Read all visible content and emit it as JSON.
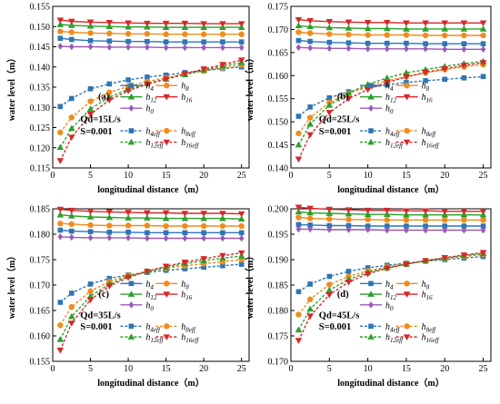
{
  "chart_data": [
    {
      "type": "line",
      "panel_label": "(a)",
      "annotation_lines": [
        "Qd=15L/s",
        "S=0.001"
      ],
      "xlabel": "longitudinal distance（m）",
      "ylabel": "water level（m）",
      "xlim": [
        0,
        26
      ],
      "ylim": [
        0.115,
        0.155
      ],
      "xticks": [
        "0",
        "5",
        "10",
        "15",
        "20",
        "25"
      ],
      "yticks": [
        "0.115",
        "0.120",
        "0.125",
        "0.130",
        "0.135",
        "0.140",
        "0.145",
        "0.150",
        "0.155"
      ],
      "x": [
        1,
        2.5,
        5,
        7.5,
        10,
        12.5,
        15,
        17.5,
        20,
        22.5,
        25
      ],
      "series": [
        {
          "name": "h4",
          "values": [
            0.1471,
            0.1468,
            0.1465,
            0.1464,
            0.1463,
            0.1463,
            0.1462,
            0.1462,
            0.1462,
            0.1462,
            0.1462
          ],
          "color": "#2E75B6",
          "marker": "square",
          "dash": false
        },
        {
          "name": "h8",
          "values": [
            0.1488,
            0.1486,
            0.1484,
            0.1483,
            0.1482,
            0.1482,
            0.1481,
            0.1481,
            0.1481,
            0.1481,
            0.1481
          ],
          "color": "#F08C1F",
          "marker": "circle",
          "dash": false
        },
        {
          "name": "h12",
          "values": [
            0.1505,
            0.1503,
            0.1501,
            0.15,
            0.1499,
            0.1499,
            0.1498,
            0.1498,
            0.1498,
            0.1498,
            0.1498
          ],
          "color": "#2CA02C",
          "marker": "triangle",
          "dash": false
        },
        {
          "name": "h16",
          "values": [
            0.1516,
            0.1513,
            0.1511,
            0.151,
            0.1509,
            0.1508,
            0.1508,
            0.1508,
            0.1507,
            0.1507,
            0.1507
          ],
          "color": "#D62728",
          "marker": "triangle-down",
          "dash": false
        },
        {
          "name": "h0",
          "values": [
            0.1451,
            0.145,
            0.145,
            0.1449,
            0.1449,
            0.1449,
            0.1448,
            0.1448,
            0.1448,
            0.1448,
            0.1448
          ],
          "color": "#9B59B6",
          "marker": "diamond",
          "dash": false
        },
        {
          "name": "h4eff",
          "values": [
            0.1302,
            0.1322,
            0.1346,
            0.1358,
            0.1368,
            0.1375,
            0.138,
            0.1386,
            0.1391,
            0.1396,
            0.14
          ],
          "color": "#2E75B6",
          "marker": "square",
          "dash": true
        },
        {
          "name": "h8eff",
          "values": [
            0.1238,
            0.1275,
            0.1315,
            0.1337,
            0.1352,
            0.1364,
            0.1373,
            0.1382,
            0.139,
            0.1398,
            0.1405
          ],
          "color": "#F08C1F",
          "marker": "circle",
          "dash": true
        },
        {
          "name": "h12eff",
          "values": [
            0.1201,
            0.1248,
            0.1296,
            0.1325,
            0.1345,
            0.1359,
            0.137,
            0.1381,
            0.1392,
            0.1402,
            0.1411
          ],
          "color": "#2CA02C",
          "marker": "triangle",
          "dash": true
        },
        {
          "name": "h16eff",
          "values": [
            0.1168,
            0.1226,
            0.1283,
            0.1318,
            0.1341,
            0.1357,
            0.137,
            0.1383,
            0.1395,
            0.1406,
            0.1417
          ],
          "color": "#D62728",
          "marker": "triangle-down",
          "dash": true
        }
      ]
    },
    {
      "type": "line",
      "panel_label": "(b)",
      "annotation_lines": [
        "Qd=25L/s",
        "S=0.001"
      ],
      "xlabel": "longitudinal distance（m）",
      "ylabel": "water level（m）",
      "xlim": [
        0,
        26
      ],
      "ylim": [
        0.14,
        0.175
      ],
      "xticks": [
        "0",
        "5",
        "10",
        "15",
        "20",
        "25"
      ],
      "yticks": [
        "0.140",
        "0.145",
        "0.150",
        "0.155",
        "0.160",
        "0.165",
        "0.170",
        "0.175"
      ],
      "x": [
        1,
        2.5,
        5,
        7.5,
        10,
        12.5,
        15,
        17.5,
        20,
        22.5,
        25
      ],
      "series": [
        {
          "name": "h4",
          "values": [
            0.1676,
            0.1674,
            0.1672,
            0.1671,
            0.167,
            0.167,
            0.167,
            0.1669,
            0.1669,
            0.1669,
            0.1669
          ],
          "color": "#2E75B6",
          "marker": "square",
          "dash": false
        },
        {
          "name": "h8",
          "values": [
            0.1694,
            0.1692,
            0.169,
            0.1689,
            0.1688,
            0.1688,
            0.1688,
            0.1687,
            0.1687,
            0.1687,
            0.1687
          ],
          "color": "#F08C1F",
          "marker": "circle",
          "dash": false
        },
        {
          "name": "h12",
          "values": [
            0.1708,
            0.1706,
            0.1704,
            0.1703,
            0.1702,
            0.1702,
            0.1701,
            0.1701,
            0.1701,
            0.1701,
            0.1701
          ],
          "color": "#2CA02C",
          "marker": "triangle",
          "dash": false
        },
        {
          "name": "h16",
          "values": [
            0.1721,
            0.1719,
            0.1717,
            0.1716,
            0.1715,
            0.1715,
            0.1714,
            0.1714,
            0.1714,
            0.1714,
            0.1714
          ],
          "color": "#D62728",
          "marker": "triangle-down",
          "dash": false
        },
        {
          "name": "h0",
          "values": [
            0.1661,
            0.166,
            0.1659,
            0.1659,
            0.1658,
            0.1658,
            0.1658,
            0.1658,
            0.1657,
            0.1657,
            0.1657
          ],
          "color": "#9B59B6",
          "marker": "diamond",
          "dash": false
        },
        {
          "name": "h4eff",
          "values": [
            0.1512,
            0.1532,
            0.1552,
            0.1565,
            0.1574,
            0.158,
            0.1585,
            0.1589,
            0.1592,
            0.1595,
            0.1598
          ],
          "color": "#2E75B6",
          "marker": "square",
          "dash": true
        },
        {
          "name": "h8eff",
          "values": [
            0.1475,
            0.1509,
            0.1542,
            0.1562,
            0.1577,
            0.1589,
            0.1598,
            0.1606,
            0.1613,
            0.1619,
            0.1624
          ],
          "color": "#F08C1F",
          "marker": "circle",
          "dash": true
        },
        {
          "name": "h12eff",
          "values": [
            0.145,
            0.1495,
            0.1536,
            0.1562,
            0.1581,
            0.1595,
            0.1606,
            0.1613,
            0.162,
            0.1626,
            0.1631
          ],
          "color": "#2CA02C",
          "marker": "triangle",
          "dash": true
        },
        {
          "name": "h16eff",
          "values": [
            0.1419,
            0.1472,
            0.152,
            0.155,
            0.157,
            0.1585,
            0.1597,
            0.1607,
            0.1615,
            0.1622,
            0.1628
          ],
          "color": "#D62728",
          "marker": "triangle-down",
          "dash": true
        }
      ]
    },
    {
      "type": "line",
      "panel_label": "(c)",
      "annotation_lines": [
        "Qd=35L/s",
        "S=0.001"
      ],
      "xlabel": "longitudinal distance（m）",
      "ylabel": "water level（m）",
      "xlim": [
        0,
        26
      ],
      "ylim": [
        0.155,
        0.185
      ],
      "xticks": [
        "0",
        "5",
        "10",
        "15",
        "20",
        "25"
      ],
      "yticks": [
        "0.155",
        "0.160",
        "0.165",
        "0.170",
        "0.175",
        "0.180",
        "0.185"
      ],
      "x": [
        1,
        2.5,
        5,
        7.5,
        10,
        12.5,
        15,
        17.5,
        20,
        22.5,
        25
      ],
      "series": [
        {
          "name": "h4",
          "values": [
            0.1808,
            0.1806,
            0.1805,
            0.1804,
            0.1804,
            0.1803,
            0.1803,
            0.1803,
            0.1803,
            0.1803,
            0.1803
          ],
          "color": "#2E75B6",
          "marker": "square",
          "dash": false
        },
        {
          "name": "h8",
          "values": [
            0.1821,
            0.182,
            0.1818,
            0.1817,
            0.1817,
            0.1817,
            0.1816,
            0.1816,
            0.1816,
            0.1816,
            0.1816
          ],
          "color": "#F08C1F",
          "marker": "circle",
          "dash": false
        },
        {
          "name": "h12",
          "values": [
            0.1838,
            0.1836,
            0.1834,
            0.1833,
            0.1832,
            0.1832,
            0.1831,
            0.1831,
            0.1831,
            0.1831,
            0.183
          ],
          "color": "#2CA02C",
          "marker": "triangle",
          "dash": false
        },
        {
          "name": "h16",
          "values": [
            0.1849,
            0.1847,
            0.1845,
            0.1844,
            0.1843,
            0.1842,
            0.1842,
            0.1841,
            0.1841,
            0.1841,
            0.184
          ],
          "color": "#D62728",
          "marker": "triangle-down",
          "dash": false
        },
        {
          "name": "h0",
          "values": [
            0.1795,
            0.1794,
            0.1793,
            0.1793,
            0.1793,
            0.1792,
            0.1792,
            0.1792,
            0.1792,
            0.1792,
            0.1792
          ],
          "color": "#9B59B6",
          "marker": "diamond",
          "dash": false
        },
        {
          "name": "h4eff",
          "values": [
            0.1666,
            0.1684,
            0.1702,
            0.1713,
            0.172,
            0.1725,
            0.1729,
            0.1732,
            0.1735,
            0.1738,
            0.1741
          ],
          "color": "#2E75B6",
          "marker": "square",
          "dash": true
        },
        {
          "name": "h8eff",
          "values": [
            0.1621,
            0.1657,
            0.1688,
            0.1707,
            0.1719,
            0.1727,
            0.1733,
            0.1738,
            0.1742,
            0.1746,
            0.175
          ],
          "color": "#F08C1F",
          "marker": "circle",
          "dash": true
        },
        {
          "name": "h12eff",
          "values": [
            0.1593,
            0.1638,
            0.1678,
            0.1702,
            0.1717,
            0.1727,
            0.1735,
            0.1742,
            0.1748,
            0.1753,
            0.1757
          ],
          "color": "#2CA02C",
          "marker": "triangle",
          "dash": true
        },
        {
          "name": "h16eff",
          "values": [
            0.1572,
            0.1625,
            0.1671,
            0.1698,
            0.1715,
            0.1727,
            0.1737,
            0.1745,
            0.1752,
            0.1758,
            0.1763
          ],
          "color": "#D62728",
          "marker": "triangle-down",
          "dash": true
        }
      ]
    },
    {
      "type": "line",
      "panel_label": "(d)",
      "annotation_lines": [
        "Qd=45L/s",
        "S=0.001"
      ],
      "xlabel": "longitudinal distance（m）",
      "ylabel": "water level（m）",
      "xlim": [
        0,
        26
      ],
      "ylim": [
        0.17,
        0.2
      ],
      "xticks": [
        "0",
        "5",
        "10",
        "15",
        "20",
        "25"
      ],
      "yticks": [
        "0.170",
        "0.175",
        "0.180",
        "0.185",
        "0.190",
        "0.195",
        "0.200"
      ],
      "x": [
        1,
        2.5,
        5,
        7.5,
        10,
        12.5,
        15,
        17.5,
        20,
        22.5,
        25
      ],
      "series": [
        {
          "name": "h4",
          "values": [
            0.1969,
            0.1968,
            0.1967,
            0.1967,
            0.1966,
            0.1966,
            0.1966,
            0.1966,
            0.1966,
            0.1966,
            0.1966
          ],
          "color": "#2E75B6",
          "marker": "square",
          "dash": false
        },
        {
          "name": "h8",
          "values": [
            0.1983,
            0.1981,
            0.198,
            0.1979,
            0.1979,
            0.1978,
            0.1978,
            0.1978,
            0.1978,
            0.1978,
            0.1978
          ],
          "color": "#F08C1F",
          "marker": "circle",
          "dash": false
        },
        {
          "name": "h12",
          "values": [
            0.1994,
            0.1992,
            0.1991,
            0.199,
            0.1989,
            0.1989,
            0.1988,
            0.1988,
            0.1988,
            0.1988,
            0.1988
          ],
          "color": "#2CA02C",
          "marker": "triangle",
          "dash": false
        },
        {
          "name": "h16",
          "values": [
            0.2003,
            0.2001,
            0.1999,
            0.1998,
            0.1997,
            0.1997,
            0.1996,
            0.1996,
            0.1995,
            0.1995,
            0.1995
          ],
          "color": "#D62728",
          "marker": "triangle-down",
          "dash": false
        },
        {
          "name": "h0",
          "values": [
            0.196,
            0.196,
            0.1959,
            0.1959,
            0.1959,
            0.1958,
            0.1958,
            0.1958,
            0.1958,
            0.1958,
            0.1958
          ],
          "color": "#9B59B6",
          "marker": "diamond",
          "dash": false
        },
        {
          "name": "h4eff",
          "values": [
            0.1837,
            0.1852,
            0.1867,
            0.1877,
            0.1884,
            0.1889,
            0.1893,
            0.1897,
            0.19,
            0.1903,
            0.1906
          ],
          "color": "#2E75B6",
          "marker": "square",
          "dash": true
        },
        {
          "name": "h8eff",
          "values": [
            0.1792,
            0.1822,
            0.1851,
            0.1867,
            0.1878,
            0.1886,
            0.1892,
            0.1897,
            0.1902,
            0.1906,
            0.191
          ],
          "color": "#F08C1F",
          "marker": "circle",
          "dash": true
        },
        {
          "name": "h12eff",
          "values": [
            0.1762,
            0.1803,
            0.184,
            0.1861,
            0.1875,
            0.1884,
            0.1891,
            0.1898,
            0.1903,
            0.1908,
            0.1912
          ],
          "color": "#2CA02C",
          "marker": "triangle",
          "dash": true
        },
        {
          "name": "h16eff",
          "values": [
            0.1741,
            0.1789,
            0.1831,
            0.1856,
            0.1872,
            0.1883,
            0.1891,
            0.1898,
            0.1904,
            0.1909,
            0.1914
          ],
          "color": "#D62728",
          "marker": "triangle-down",
          "dash": true
        }
      ]
    }
  ]
}
